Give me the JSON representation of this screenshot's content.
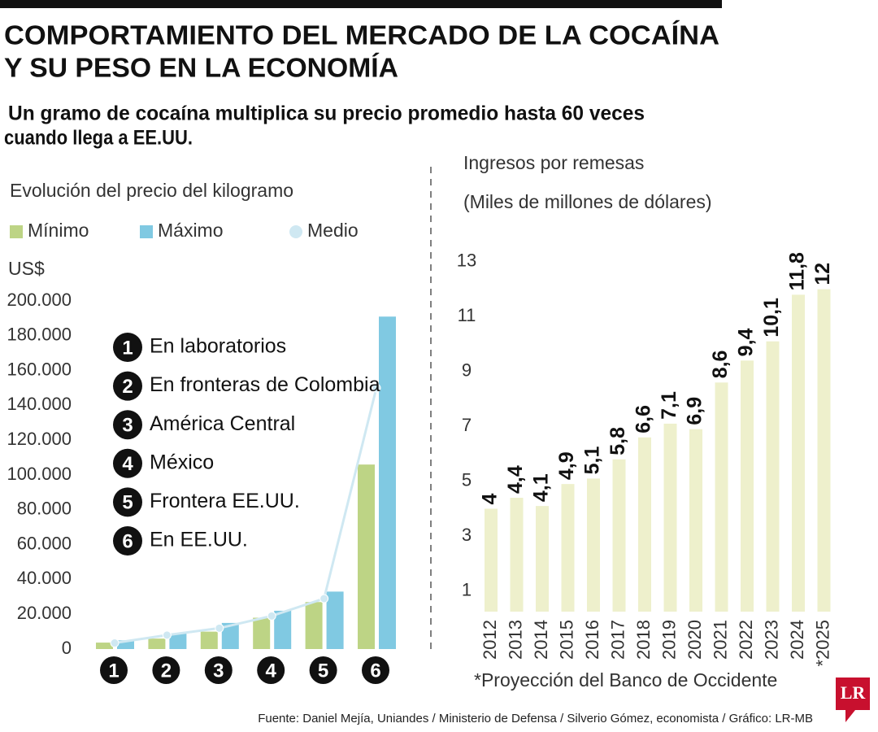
{
  "header": {
    "title_lines": [
      "COMPORTAMIENTO DEL MERCADO DE LA COCAÍNA",
      "Y SU PESO EN LA ECONOMÍA"
    ],
    "subtitle_lines": [
      "Un gramo de cocaína multiplica su precio promedio hasta 60 veces",
      "cuando llega a EE.UU."
    ]
  },
  "chart_data": [
    {
      "type": "bar",
      "title": "Evolución del precio del kilogramo",
      "ylabel": "US$",
      "categories": [
        "1",
        "2",
        "3",
        "4",
        "5",
        "6"
      ],
      "stages": [
        "En laboratorios",
        "En fronteras de Colombia",
        "América Central",
        "México",
        "Frontera EE.UU.",
        "En EE.UU."
      ],
      "series": [
        {
          "name": "Mínimo",
          "color": "#bdd485",
          "values": [
            3700,
            6000,
            10000,
            18000,
            27000,
            106000
          ]
        },
        {
          "name": "Máximo",
          "color": "#80c9e2",
          "values": [
            5000,
            9000,
            15000,
            22000,
            33000,
            191000
          ]
        },
        {
          "name": "Medio",
          "type": "line",
          "color": "#cfe8f2",
          "values": [
            3500,
            8000,
            12000,
            19000,
            29000,
            150000
          ]
        }
      ],
      "ylim": [
        0,
        200000
      ],
      "yticks": [
        0,
        {
          "value": 20000,
          "label": "20.000"
        },
        {
          "value": 40000,
          "label": "40.000"
        },
        {
          "value": 60000,
          "label": "60.000"
        },
        {
          "value": 80000,
          "label": "80.000"
        },
        {
          "value": 100000,
          "label": "100.000"
        },
        {
          "value": 120000,
          "label": "120.000"
        },
        {
          "value": 140000,
          "label": "140.000"
        },
        {
          "value": 160000,
          "label": "160.000"
        },
        {
          "value": 180000,
          "label": "180.000"
        },
        {
          "value": 200000,
          "label": "200.000"
        }
      ]
    },
    {
      "type": "bar",
      "title": "Ingresos por remesas",
      "subtitle": "(Miles de millones de dólares)",
      "categories": [
        "2012",
        "2013",
        "2014",
        "2015",
        "2016",
        "2017",
        "2018",
        "2019",
        "2020",
        "2021",
        "2022",
        "2023",
        "2024",
        "*2025"
      ],
      "values": [
        4,
        4.4,
        4.1,
        4.9,
        5.1,
        5.8,
        6.6,
        7.1,
        6.9,
        8.6,
        9.4,
        10.1,
        11.8,
        12
      ],
      "value_labels": [
        "4",
        "4,4",
        "4,1",
        "4,9",
        "5,1",
        "5,8",
        "6,6",
        "7,1",
        "6,9",
        "8,6",
        "9,4",
        "10,1",
        "11,8",
        "12"
      ],
      "color": "#eef0cc",
      "ylim": [
        0.25,
        13.5
      ],
      "yticks": [
        1,
        3,
        5,
        7,
        9,
        11,
        13
      ],
      "note": "*Proyección del Banco de Occidente"
    }
  ],
  "footer": {
    "source": "Fuente: Daniel Mejía, Uniandes / Ministerio de Defensa / Silverio Gómez, economista / Gráfico: LR-MB",
    "logo": "LR"
  }
}
